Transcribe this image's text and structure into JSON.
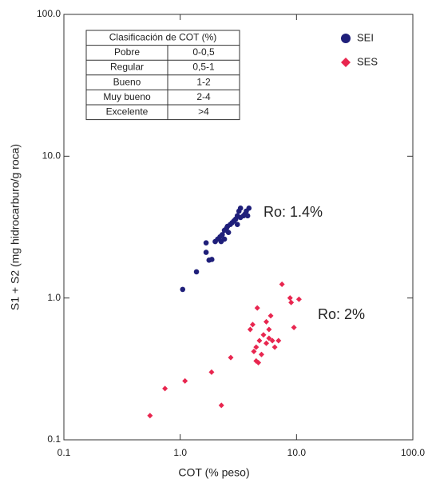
{
  "chart_data": {
    "type": "scatter",
    "x_label": "COT (% peso)",
    "y_label": "S1 + S2 (mg hidrocarburo/g roca)",
    "xscale": "log",
    "yscale": "log",
    "xlim": [
      0.1,
      100
    ],
    "ylim": [
      0.1,
      100
    ],
    "xticks": [
      0.1,
      {
        "value": 1,
        "label": "1.0"
      },
      {
        "value": 10,
        "label": "10.0"
      },
      {
        "value": 100,
        "label": "100.0"
      }
    ],
    "yticks": [
      0.1,
      {
        "value": 1,
        "label": "1.0"
      },
      {
        "value": 10,
        "label": "10.0"
      },
      {
        "value": 100,
        "label": "100.0"
      }
    ],
    "legend": "top-right",
    "series": [
      {
        "name": "SEI",
        "color": "#1f1f7a",
        "marker": "circle",
        "x": [
          1.05,
          1.38,
          1.67,
          1.67,
          1.77,
          1.87,
          2.0,
          2.1,
          2.2,
          2.25,
          2.3,
          2.4,
          2.4,
          2.5,
          2.55,
          2.7,
          2.8,
          2.9,
          3.1,
          3.2,
          3.3,
          3.3,
          3.5,
          3.6,
          3.7,
          3.9,
          3.0,
          3.1,
          2.6,
          3.8
        ],
        "values": [
          1.15,
          1.53,
          2.45,
          2.1,
          1.85,
          1.87,
          2.5,
          2.6,
          2.7,
          2.5,
          2.8,
          3.0,
          2.6,
          3.1,
          3.2,
          3.3,
          3.4,
          3.5,
          3.8,
          4.1,
          4.3,
          3.7,
          3.8,
          3.9,
          4.1,
          4.3,
          3.6,
          3.3,
          2.9,
          3.8
        ]
      },
      {
        "name": "SES",
        "color": "#e8264f",
        "marker": "diamond",
        "x": [
          0.55,
          0.74,
          1.1,
          1.86,
          2.26,
          2.72,
          4.0,
          4.2,
          4.5,
          4.6,
          4.8,
          5.0,
          4.7,
          5.2,
          5.5,
          5.8,
          5.8,
          6.0,
          6.2,
          6.5,
          7.0,
          7.5,
          8.8,
          9.0,
          9.5,
          10.5,
          4.3,
          5.5,
          4.5
        ],
        "values": [
          0.148,
          0.23,
          0.26,
          0.3,
          0.175,
          0.38,
          0.6,
          0.65,
          0.45,
          0.85,
          0.5,
          0.4,
          0.35,
          0.55,
          0.48,
          0.52,
          0.6,
          0.75,
          0.5,
          0.45,
          0.5,
          1.25,
          1.0,
          0.93,
          0.62,
          0.98,
          0.42,
          0.68,
          0.36
        ]
      }
    ],
    "annotations": [
      "Ro: 1.4%",
      "Ro: 2%"
    ],
    "table": {
      "header": "Clasificación de COT (%)",
      "rows": [
        [
          "Pobre",
          "0-0,5"
        ],
        [
          "Regular",
          "0,5-1"
        ],
        [
          "Bueno",
          "1-2"
        ],
        [
          "Muy bueno",
          "2-4"
        ],
        [
          "Excelente",
          ">4"
        ]
      ]
    }
  }
}
